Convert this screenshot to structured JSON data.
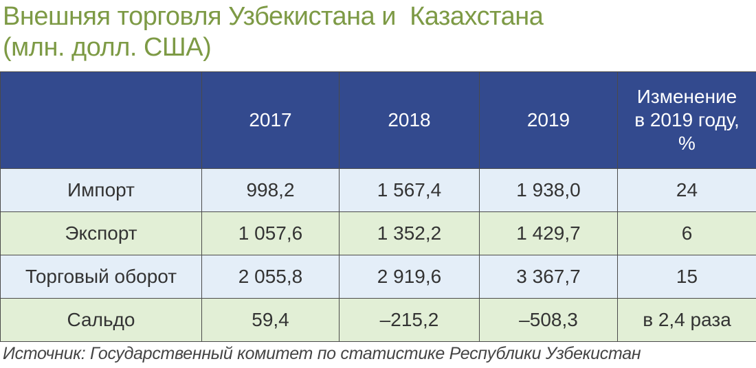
{
  "title": {
    "line1": "Внешняя торговля Узбекистана и  Казахстана",
    "line2": "(млн. долл. США)"
  },
  "table": {
    "header": [
      "2017",
      "2018",
      "2019",
      "Изменение в 2019 году, %"
    ],
    "rows": [
      [
        "Импорт",
        "998,2",
        "1 567,4",
        "1 938,0",
        "24"
      ],
      [
        "Экспорт",
        "1 057,6",
        "1 352,2",
        "1 429,7",
        "6"
      ],
      [
        "Торговый оборот",
        "2 055,8",
        "2 919,6",
        "3 367,7",
        "15"
      ],
      [
        "Сальдо",
        "59,4",
        "–215,2",
        "–508,3",
        "в 2,4 раза"
      ]
    ]
  },
  "source": "Источник: Государственный комитет по статистике Республики Узбекистан"
}
